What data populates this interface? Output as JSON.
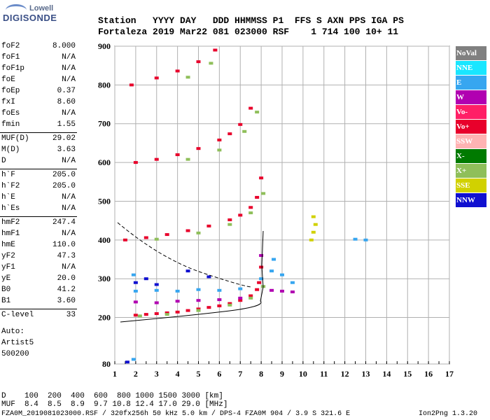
{
  "logo": {
    "line1": "Lowell",
    "line2": "DIGISONDE"
  },
  "header": {
    "labels": "Station   YYYY DAY   DDD HHMMSS P1  FFS S AXN PPS IGA PS",
    "values": "Fortaleza 2019 Mar22 081 023000 RSF    1 714 100 10+ 11"
  },
  "params": [
    {
      "name": "foF2",
      "value": "8.000"
    },
    {
      "name": "foF1",
      "value": "N/A"
    },
    {
      "name": "foF1p",
      "value": "N/A"
    },
    {
      "name": "foE",
      "value": "N/A"
    },
    {
      "name": "foEp",
      "value": "0.37"
    },
    {
      "name": "fxI",
      "value": "8.60"
    },
    {
      "name": "foEs",
      "value": "N/A"
    },
    {
      "name": "fmin",
      "value": "1.55"
    },
    {
      "name": "MUF(D)",
      "value": "29.02"
    },
    {
      "name": "M(D)",
      "value": "3.63"
    },
    {
      "name": "D",
      "value": "N/A"
    },
    {
      "name": "h`F",
      "value": "205.0"
    },
    {
      "name": "h`F2",
      "value": "205.0"
    },
    {
      "name": "h`E",
      "value": "N/A"
    },
    {
      "name": "h`Es",
      "value": "N/A"
    },
    {
      "name": "hmF2",
      "value": "247.4"
    },
    {
      "name": "hmF1",
      "value": "N/A"
    },
    {
      "name": "hmE",
      "value": "110.0"
    },
    {
      "name": "yF2",
      "value": "47.3"
    },
    {
      "name": "yF1",
      "value": "N/A"
    },
    {
      "name": "yE",
      "value": "20.0"
    },
    {
      "name": "B0",
      "value": "41.2"
    },
    {
      "name": "B1",
      "value": "3.60"
    },
    {
      "name": "C-level",
      "value": "33"
    }
  ],
  "autoscale": {
    "line1": "Auto:",
    "line2": "Artist5",
    "line3": "500200"
  },
  "legend": [
    {
      "label": "NoVal",
      "bg": "#808080",
      "fg": "#ffffff"
    },
    {
      "label": "NNE",
      "bg": "#19e6ff",
      "fg": "#ffffff"
    },
    {
      "label": "E",
      "bg": "#37a6f0",
      "fg": "#ffffff"
    },
    {
      "label": "W",
      "bg": "#b100b1",
      "fg": "#ffffff"
    },
    {
      "label": "Vo-",
      "bg": "#ff1f66",
      "fg": "#ffffff"
    },
    {
      "label": "Vo+",
      "bg": "#e8002b",
      "fg": "#ffffff"
    },
    {
      "label": "SSW",
      "bg": "#ffb3b3",
      "fg": "#ffffff"
    },
    {
      "label": "X-",
      "bg": "#007a00",
      "fg": "#ffffff"
    },
    {
      "label": "X+",
      "bg": "#8fbf5a",
      "fg": "#ffffff"
    },
    {
      "label": "SSE",
      "bg": "#d1d100",
      "fg": "#ffffff"
    },
    {
      "label": "NNW",
      "bg": "#1010d0",
      "fg": "#ffffff"
    }
  ],
  "footer": {
    "d_row": "D    100  200  400  600  800 1000 1500 3000 [km]",
    "muf_row": "MUF  8.4  8.5  8.9  9.7 10.8 12.4 17.0 29.0 [MHz]",
    "file_row": "FZA0M_2019081023000.RSF / 320fx256h 50 kHz 5.0 km / DPS-4 FZA0M 904 / 3.9 S 321.6 E",
    "version": "Ion2Png 1.3.20"
  },
  "chart_data": {
    "type": "scatter",
    "xlim": [
      1,
      17
    ],
    "ylim": [
      80,
      900
    ],
    "x_ticks": [
      1,
      2,
      3,
      4,
      5,
      6,
      7,
      8,
      9,
      10,
      11,
      12,
      13,
      14,
      15,
      16,
      17
    ],
    "y_ticks": [
      80,
      200,
      300,
      400,
      500,
      600,
      700,
      800,
      900
    ],
    "grid": true,
    "series": [
      {
        "name": "Vo+",
        "color": "#e8002b",
        "points": [
          [
            2.0,
            206
          ],
          [
            2.5,
            208
          ],
          [
            3.0,
            210
          ],
          [
            3.5,
            212
          ],
          [
            4.0,
            214
          ],
          [
            4.5,
            218
          ],
          [
            5.0,
            222
          ],
          [
            5.5,
            226
          ],
          [
            6.0,
            230
          ],
          [
            6.5,
            236
          ],
          [
            7.0,
            244
          ],
          [
            7.5,
            256
          ],
          [
            7.8,
            272
          ],
          [
            7.9,
            290
          ],
          [
            8.0,
            330
          ],
          [
            1.5,
            400
          ],
          [
            2.5,
            406
          ],
          [
            3.5,
            414
          ],
          [
            4.5,
            424
          ],
          [
            5.5,
            436
          ],
          [
            6.5,
            452
          ],
          [
            7.0,
            464
          ],
          [
            7.5,
            484
          ],
          [
            7.8,
            510
          ],
          [
            8.0,
            560
          ],
          [
            2.0,
            600
          ],
          [
            3.0,
            608
          ],
          [
            4.0,
            620
          ],
          [
            5.0,
            636
          ],
          [
            6.0,
            658
          ],
          [
            6.5,
            674
          ],
          [
            7.0,
            698
          ],
          [
            7.5,
            740
          ],
          [
            1.8,
            800
          ],
          [
            3.0,
            818
          ],
          [
            4.0,
            836
          ],
          [
            5.0,
            860
          ],
          [
            5.8,
            890
          ]
        ]
      },
      {
        "name": "X+",
        "color": "#8fbf5a",
        "points": [
          [
            2.2,
            204
          ],
          [
            3.5,
            208
          ],
          [
            5.0,
            218
          ],
          [
            6.5,
            232
          ],
          [
            7.5,
            250
          ],
          [
            8.1,
            280
          ],
          [
            3.0,
            402
          ],
          [
            5.0,
            418
          ],
          [
            6.5,
            440
          ],
          [
            7.5,
            470
          ],
          [
            8.1,
            520
          ],
          [
            4.5,
            608
          ],
          [
            6.0,
            632
          ],
          [
            7.2,
            680
          ],
          [
            7.8,
            730
          ],
          [
            4.5,
            820
          ],
          [
            5.6,
            856
          ]
        ]
      },
      {
        "name": "E",
        "color": "#37a6f0",
        "points": [
          [
            2.0,
            268
          ],
          [
            3.0,
            270
          ],
          [
            4.0,
            268
          ],
          [
            5.0,
            272
          ],
          [
            6.0,
            270
          ],
          [
            7.0,
            274
          ],
          [
            8.0,
            300
          ],
          [
            8.5,
            320
          ],
          [
            9.0,
            310
          ],
          [
            9.5,
            290
          ],
          [
            8.6,
            350
          ],
          [
            12.5,
            402
          ],
          [
            13.0,
            400
          ],
          [
            1.9,
            310
          ],
          [
            1.9,
            92
          ]
        ]
      },
      {
        "name": "W",
        "color": "#b100b1",
        "points": [
          [
            2.0,
            240
          ],
          [
            3.0,
            238
          ],
          [
            4.0,
            242
          ],
          [
            5.0,
            244
          ],
          [
            6.0,
            246
          ],
          [
            7.0,
            250
          ],
          [
            8.5,
            270
          ],
          [
            9.0,
            268
          ],
          [
            9.5,
            266
          ],
          [
            8.0,
            360
          ]
        ]
      },
      {
        "name": "NNW",
        "color": "#1010d0",
        "points": [
          [
            2.0,
            290
          ],
          [
            2.5,
            300
          ],
          [
            3.0,
            285
          ],
          [
            4.5,
            320
          ],
          [
            5.5,
            305
          ],
          [
            1.6,
            85
          ]
        ]
      },
      {
        "name": "SSE",
        "color": "#d1d100",
        "points": [
          [
            10.5,
            420
          ],
          [
            10.6,
            440
          ],
          [
            10.4,
            400
          ],
          [
            10.5,
            460
          ]
        ]
      }
    ]
  }
}
